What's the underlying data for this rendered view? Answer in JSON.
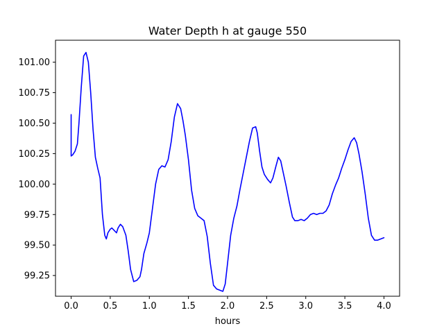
{
  "chart_data": {
    "type": "line",
    "title": "Water Depth h at gauge 550",
    "xlabel": "hours",
    "ylabel": "",
    "xlim": [
      -0.2,
      4.2
    ],
    "ylim": [
      99.08,
      101.18
    ],
    "grid": false,
    "line_color": "#0000ff",
    "xticks": [
      0.0,
      0.5,
      1.0,
      1.5,
      2.0,
      2.5,
      3.0,
      3.5,
      4.0
    ],
    "xtick_labels": [
      "0.0",
      "0.5",
      "1.0",
      "1.5",
      "2.0",
      "2.5",
      "3.0",
      "3.5",
      "4.0"
    ],
    "yticks": [
      99.25,
      99.5,
      99.75,
      100.0,
      100.25,
      100.5,
      100.75,
      101.0
    ],
    "ytick_labels": [
      "99.25",
      "99.50",
      "99.75",
      "100.00",
      "100.25",
      "100.50",
      "100.75",
      "101.00"
    ],
    "series": [
      {
        "x": [
          0.0,
          0.0,
          0.02,
          0.05,
          0.08,
          0.1,
          0.13,
          0.16,
          0.19,
          0.22,
          0.25,
          0.28,
          0.31,
          0.34,
          0.37,
          0.4,
          0.43,
          0.45,
          0.47,
          0.5,
          0.52,
          0.55,
          0.58,
          0.6,
          0.63,
          0.66,
          0.7,
          0.73,
          0.76,
          0.8,
          0.84,
          0.88,
          0.9,
          0.93,
          0.97,
          1.0,
          1.04,
          1.08,
          1.12,
          1.16,
          1.2,
          1.24,
          1.28,
          1.32,
          1.36,
          1.4,
          1.43,
          1.46,
          1.5,
          1.54,
          1.58,
          1.62,
          1.66,
          1.7,
          1.74,
          1.78,
          1.82,
          1.86,
          1.9,
          1.94,
          1.97,
          2.0,
          2.04,
          2.08,
          2.12,
          2.16,
          2.2,
          2.24,
          2.28,
          2.32,
          2.36,
          2.38,
          2.41,
          2.44,
          2.47,
          2.51,
          2.55,
          2.58,
          2.62,
          2.65,
          2.68,
          2.71,
          2.75,
          2.79,
          2.83,
          2.86,
          2.9,
          2.94,
          2.98,
          3.02,
          3.06,
          3.1,
          3.14,
          3.18,
          3.22,
          3.26,
          3.3,
          3.34,
          3.38,
          3.42,
          3.46,
          3.5,
          3.54,
          3.58,
          3.62,
          3.65,
          3.68,
          3.72,
          3.76,
          3.8,
          3.84,
          3.88,
          3.92,
          3.96,
          4.0
        ],
        "y": [
          100.57,
          100.23,
          100.24,
          100.27,
          100.33,
          100.5,
          100.8,
          101.05,
          101.08,
          101.0,
          100.75,
          100.45,
          100.22,
          100.13,
          100.05,
          99.75,
          99.58,
          99.55,
          99.6,
          99.63,
          99.64,
          99.62,
          99.6,
          99.64,
          99.67,
          99.65,
          99.58,
          99.45,
          99.3,
          99.2,
          99.21,
          99.24,
          99.3,
          99.43,
          99.52,
          99.6,
          99.8,
          100.0,
          100.12,
          100.15,
          100.14,
          100.2,
          100.35,
          100.55,
          100.66,
          100.62,
          100.52,
          100.4,
          100.2,
          99.95,
          99.8,
          99.74,
          99.72,
          99.7,
          99.57,
          99.35,
          99.17,
          99.14,
          99.13,
          99.12,
          99.18,
          99.35,
          99.58,
          99.72,
          99.82,
          99.96,
          100.09,
          100.22,
          100.35,
          100.46,
          100.47,
          100.42,
          100.27,
          100.14,
          100.08,
          100.04,
          100.01,
          100.05,
          100.15,
          100.22,
          100.19,
          100.1,
          99.98,
          99.85,
          99.73,
          99.7,
          99.7,
          99.71,
          99.7,
          99.72,
          99.75,
          99.76,
          99.75,
          99.76,
          99.76,
          99.78,
          99.83,
          99.92,
          99.99,
          100.05,
          100.13,
          100.2,
          100.28,
          100.35,
          100.38,
          100.34,
          100.25,
          100.1,
          99.92,
          99.72,
          99.58,
          99.54,
          99.54,
          99.55,
          99.56
        ]
      }
    ]
  }
}
